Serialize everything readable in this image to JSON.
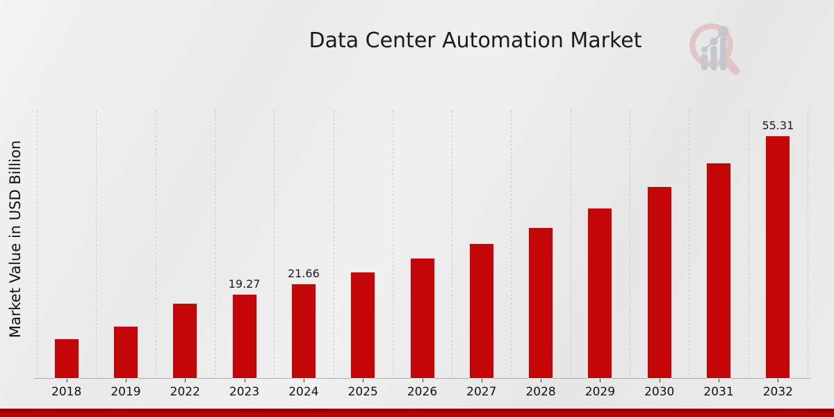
{
  "chart_data": {
    "type": "bar",
    "title": "Data Center Automation Market",
    "ylabel": "Market Value in USD Billion",
    "xlabel": "",
    "categories": [
      "2018",
      "2019",
      "2022",
      "2023",
      "2024",
      "2025",
      "2026",
      "2027",
      "2028",
      "2029",
      "2030",
      "2031",
      "2032"
    ],
    "values": [
      9.1,
      12.0,
      17.2,
      19.27,
      21.66,
      24.3,
      27.5,
      30.8,
      34.4,
      38.8,
      43.7,
      49.1,
      55.31
    ],
    "bar_labels": [
      "",
      "",
      "",
      "19.27",
      "21.66",
      "",
      "",
      "",
      "",
      "",
      "",
      "",
      "55.31"
    ],
    "ylim": [
      0,
      61
    ],
    "grid": "vertical-dashed",
    "legend": "none",
    "bar_color": "#c50606",
    "bar_edge_color": "#e3e3e3",
    "grid_color": "#c9c9c9",
    "axis_line_color": "#ababab",
    "tick_color": "#333333"
  },
  "watermark": {
    "name": "magnifier-growth-chart-logo",
    "ring_color": "#e2c4c7",
    "bars_color": "#c6c7cb"
  },
  "footer": {
    "top_color": "#8a0303",
    "main_color": "#bb0404"
  }
}
